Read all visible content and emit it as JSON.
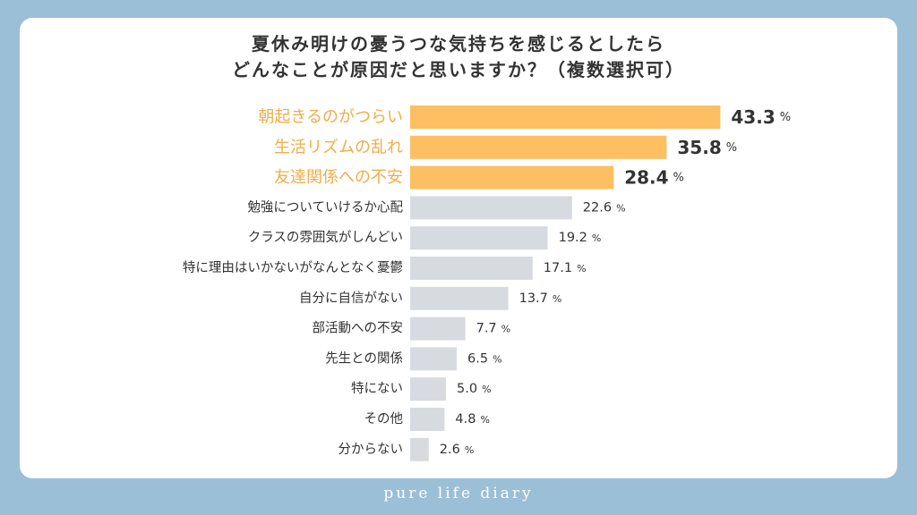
{
  "title_lines": [
    "夏休み明けの憂うつな気持ちを感じるとしたら",
    "どんなことが原因だと思いますか？（複数選択可）"
  ],
  "footer": "pure life diary",
  "colors": {
    "highlight": "#fdbf62",
    "bar": "#d7dbe0",
    "highlight_text": "#f1ad4a",
    "text": "#333333"
  },
  "chart_data": {
    "type": "bar",
    "orientation": "horizontal",
    "categories": [
      "朝起きるのがつらい",
      "生活リズムの乱れ",
      "友達関係への不安",
      "勉強についていけるか心配",
      "クラスの雰囲気がしんどい",
      "特に理由はいかないがなんとなく憂鬱",
      "自分に自信がない",
      "部活動への不安",
      "先生との関係",
      "特にない",
      "その他",
      "分からない"
    ],
    "values": [
      43.3,
      35.8,
      28.4,
      22.6,
      19.2,
      17.1,
      13.7,
      7.7,
      6.5,
      5.0,
      4.8,
      2.6
    ],
    "value_labels": [
      "43.3",
      "35.8",
      "28.4",
      "22.6",
      "19.2",
      "17.1",
      "13.7",
      "7.7",
      "6.5",
      "5.0",
      "4.8",
      "2.6"
    ],
    "unit": "%",
    "highlighted_count": 3,
    "xlim": [
      0,
      45
    ],
    "grid": false,
    "legend": "none"
  }
}
